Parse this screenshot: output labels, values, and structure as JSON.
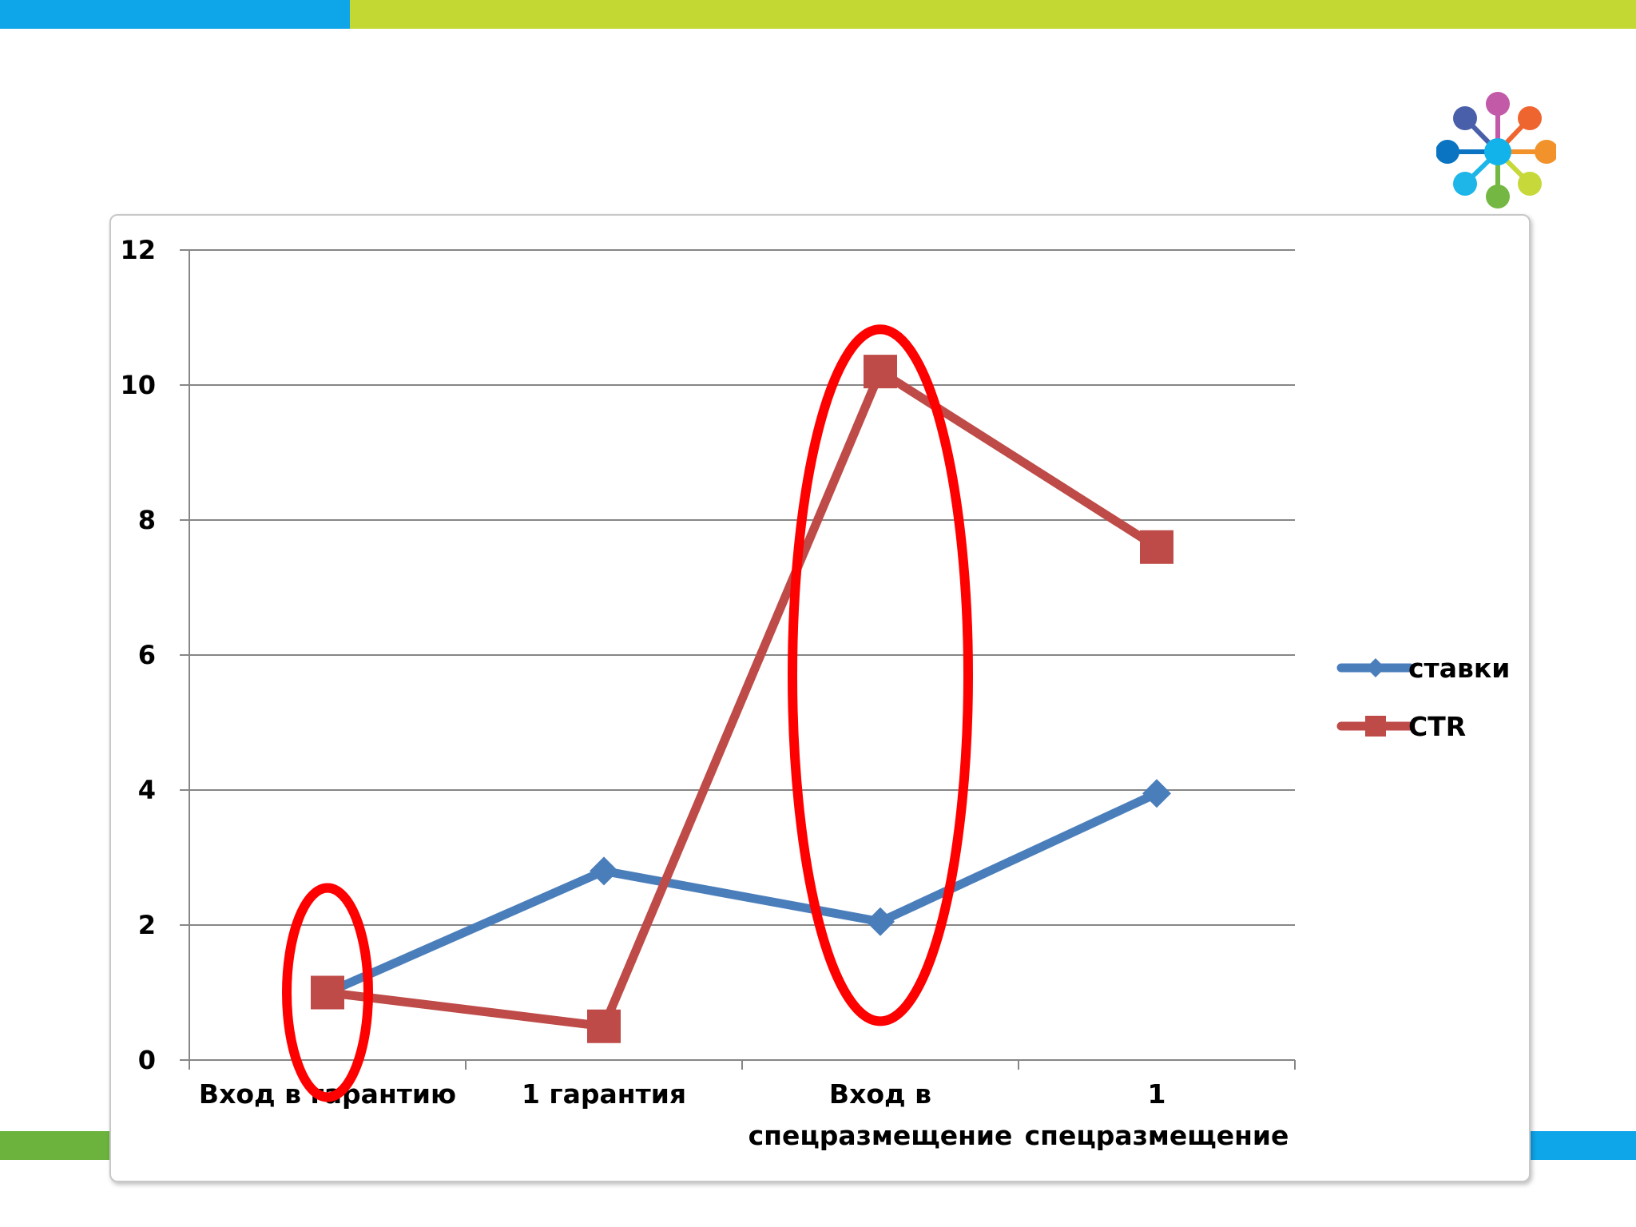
{
  "theme": {
    "band_blue": "#0ea5e9",
    "band_lime": "#c3d832",
    "band_green": "#6cb33e",
    "highlight_red": "#ff0000"
  },
  "logo": {
    "icon": "flower-network-logo",
    "colors": [
      "#c25aa7",
      "#ef6530",
      "#f2922b",
      "#c6d83a",
      "#74b843",
      "#1eb6e8",
      "#0a74c2",
      "#4a5faa",
      "#12b3ea"
    ]
  },
  "chart_data": {
    "type": "line",
    "categories": [
      [
        "Вход в гарантию"
      ],
      [
        "1 гарантия"
      ],
      [
        "Вход в",
        "спецразмещение"
      ],
      [
        "1",
        "спецразмещение"
      ]
    ],
    "series": [
      {
        "name": "ставки",
        "color": "#4a7ebb",
        "marker": "diamond",
        "values": [
          1.0,
          2.8,
          2.05,
          3.95
        ]
      },
      {
        "name": "CTR",
        "color": "#be4b48",
        "marker": "square",
        "values": [
          1.0,
          0.5,
          10.2,
          7.6
        ]
      }
    ],
    "ylim": [
      0,
      12
    ],
    "yticks": [
      "0",
      "2",
      "4",
      "6",
      "8",
      "10",
      "12"
    ],
    "grid": true,
    "legend": "right",
    "annotations": [
      {
        "shape": "ellipse",
        "category_index": 0,
        "y_center": 1.0,
        "y_span": 3.1,
        "color": "#ff0000"
      },
      {
        "shape": "ellipse",
        "category_index": 2,
        "y_center": 5.7,
        "y_span": 10.25,
        "color": "#ff0000"
      }
    ]
  }
}
